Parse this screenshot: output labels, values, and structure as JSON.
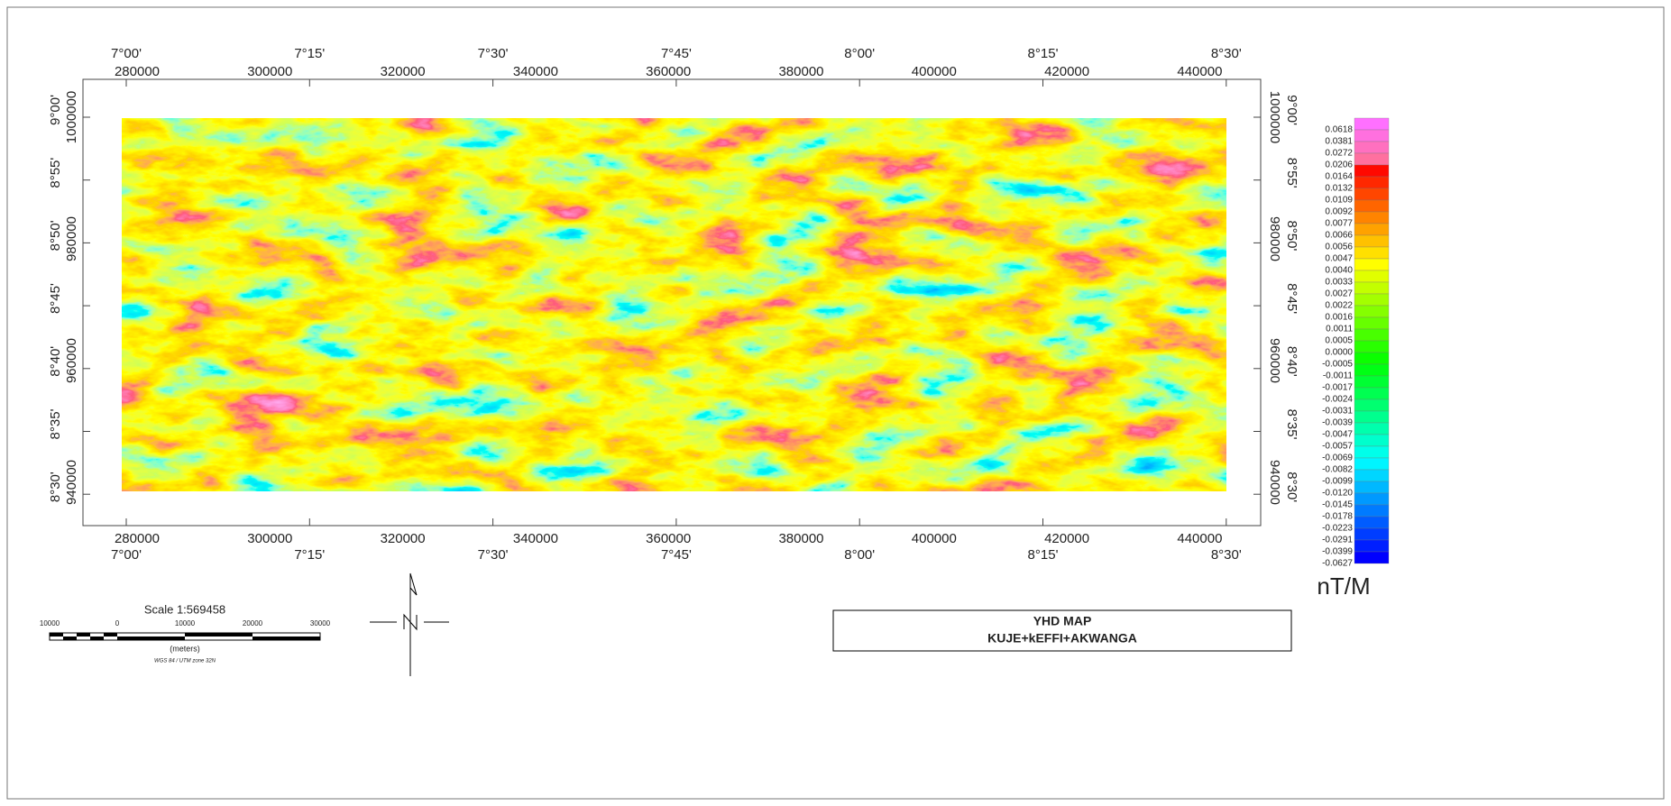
{
  "map": {
    "longitudes": [
      "7°00'",
      "7°15'",
      "7°30'",
      "7°45'",
      "8°00'",
      "8°15'",
      "8°30'"
    ],
    "eastings": [
      "280000",
      "300000",
      "320000",
      "340000",
      "360000",
      "380000",
      "400000",
      "420000",
      "440000"
    ],
    "latitudes": [
      "9°00'",
      "8°55'",
      "8°50'",
      "8°45'",
      "8°40'",
      "8°35'",
      "8°30'"
    ],
    "northings": [
      "1000000",
      "980000",
      "960000",
      "940000"
    ]
  },
  "legend": {
    "unit": "nT/M",
    "labels": [
      "0.0618",
      "0.0381",
      "0.0272",
      "0.0206",
      "0.0164",
      "0.0132",
      "0.0109",
      "0.0092",
      "0.0077",
      "0.0066",
      "0.0056",
      "0.0047",
      "0.0040",
      "0.0033",
      "0.0027",
      "0.0022",
      "0.0016",
      "0.0011",
      "0.0005",
      "0.0000",
      "-0.0005",
      "-0.0011",
      "-0.0017",
      "-0.0024",
      "-0.0031",
      "-0.0039",
      "-0.0047",
      "-0.0057",
      "-0.0069",
      "-0.0082",
      "-0.0099",
      "-0.0120",
      "-0.0145",
      "-0.0178",
      "-0.0223",
      "-0.0291",
      "-0.0399",
      "-0.0627"
    ]
  },
  "scale": {
    "title": "Scale 1:569458",
    "ticks": [
      "10000",
      "0",
      "10000",
      "20000",
      "30000"
    ],
    "units": "(meters)",
    "projection": "WGS 84 / UTM zone 32N"
  },
  "title": {
    "line1": "YHD MAP",
    "line2": "KUJE+kEFFI+AKWANGA"
  }
}
